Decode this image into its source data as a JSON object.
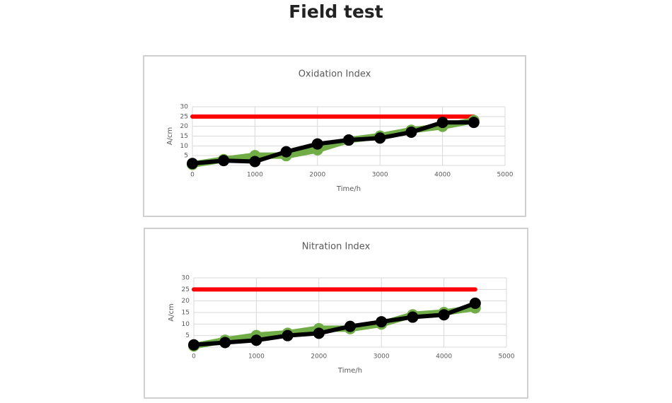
{
  "title": "Field test",
  "chart_data": [
    {
      "type": "line",
      "title": "Oxidation Index",
      "x_label": "Time/h",
      "y_label": "A/cm",
      "x": [
        0,
        500,
        1000,
        1500,
        2000,
        2500,
        3000,
        3500,
        4000,
        4500
      ],
      "series": [
        {
          "color": "#ff0000",
          "markers": false,
          "values": [
            25,
            25,
            25,
            25,
            25,
            25,
            25,
            25,
            25,
            25
          ]
        },
        {
          "color": "#70ad47",
          "markers": true,
          "values": [
            0.5,
            3,
            5,
            5,
            8,
            13,
            15,
            18,
            20,
            23
          ]
        },
        {
          "color": "#000000",
          "markers": true,
          "values": [
            1,
            2.5,
            2,
            7,
            11,
            13,
            14,
            17,
            22,
            22
          ]
        }
      ],
      "xlim": [
        0,
        5000
      ],
      "xticks": [
        0,
        1000,
        2000,
        3000,
        4000,
        5000
      ],
      "ylim": [
        0,
        30
      ],
      "yticks": [
        5,
        10,
        15,
        20,
        25,
        30
      ],
      "grid": true
    },
    {
      "type": "line",
      "title": "Nitration Index",
      "x_label": "Time/h",
      "y_label": "A/cm",
      "x": [
        0,
        500,
        1000,
        1500,
        2000,
        2500,
        3000,
        3500,
        4000,
        4500
      ],
      "series": [
        {
          "color": "#ff0000",
          "markers": false,
          "values": [
            25,
            25,
            25,
            25,
            25,
            25,
            25,
            25,
            25,
            25
          ]
        },
        {
          "color": "#70ad47",
          "markers": true,
          "values": [
            0.5,
            3,
            5,
            6,
            8,
            8,
            10,
            14,
            15,
            17
          ]
        },
        {
          "color": "#000000",
          "markers": true,
          "values": [
            1,
            2,
            3,
            5,
            6,
            9,
            11,
            13,
            14,
            19
          ]
        }
      ],
      "xlim": [
        0,
        5000
      ],
      "xticks": [
        0,
        1000,
        2000,
        3000,
        4000,
        5000
      ],
      "ylim": [
        0,
        30
      ],
      "yticks": [
        5,
        10,
        15,
        20,
        25,
        30
      ],
      "grid": true
    }
  ]
}
